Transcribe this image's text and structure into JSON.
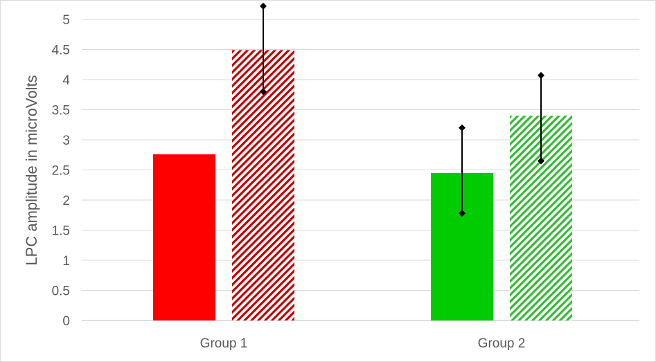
{
  "chart_data": {
    "type": "bar",
    "title": "",
    "xlabel": "",
    "ylabel": "LPC amplitude in microVolts",
    "categories": [
      "Group 1",
      "Group 2"
    ],
    "ylim": [
      0,
      5
    ],
    "yticks": [
      0,
      0.5,
      1,
      1.5,
      2,
      2.5,
      3,
      3.5,
      4,
      4.5,
      5
    ],
    "grid": true,
    "legend": "none",
    "bars": [
      {
        "category_index": 0,
        "slot": 0,
        "value": 2.76,
        "color": "#ff0000",
        "pattern": "solid",
        "error": null
      },
      {
        "category_index": 0,
        "slot": 1,
        "value": 4.49,
        "color": "#c00000",
        "pattern": "diagonal-hatch",
        "error": {
          "low": 3.8,
          "high": 5.22
        }
      },
      {
        "category_index": 1,
        "slot": 0,
        "value": 2.45,
        "color": "#00cc00",
        "pattern": "solid",
        "error": {
          "low": 1.78,
          "high": 3.2
        }
      },
      {
        "category_index": 1,
        "slot": 1,
        "value": 3.4,
        "color": "#33bb33",
        "pattern": "diagonal-hatch",
        "error": {
          "low": 2.65,
          "high": 4.07
        }
      }
    ]
  }
}
